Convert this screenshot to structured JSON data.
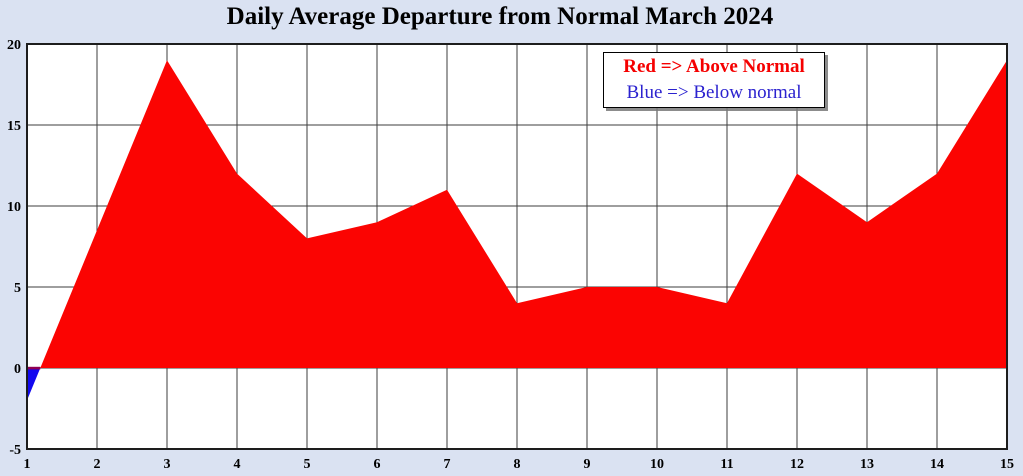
{
  "page": {
    "background": "#dae2f2"
  },
  "chart_data": {
    "type": "area",
    "title": "Daily Average Departure from Normal March 2024",
    "xlabel": "",
    "ylabel": "",
    "x": [
      1,
      2,
      3,
      4,
      5,
      6,
      7,
      8,
      9,
      10,
      11,
      12,
      13,
      14,
      15
    ],
    "values": [
      -2,
      8.5,
      19,
      12,
      8,
      9,
      11,
      4,
      5,
      5,
      4,
      12,
      9,
      12,
      19
    ],
    "baseline": 0,
    "xlim": [
      1,
      15
    ],
    "ylim": [
      -5,
      20
    ],
    "x_ticks": [
      1,
      2,
      3,
      4,
      5,
      6,
      7,
      8,
      9,
      10,
      11,
      12,
      13,
      14,
      15
    ],
    "y_ticks": [
      -5,
      0,
      5,
      10,
      15,
      20
    ],
    "grid": true,
    "legend": {
      "position": "top-right",
      "entries": [
        {
          "label": "Red => Above Normal",
          "color": "#f50000",
          "bold": true
        },
        {
          "label": "Blue => Below normal",
          "color": "#2b22cf",
          "bold": false
        }
      ]
    },
    "colors": {
      "above_normal": "#fb0402",
      "below_normal": "#1208ef",
      "plot_background": "#ffffff",
      "gridline": "#3e3e3e",
      "border": "#1d1d1d",
      "title": "#000000",
      "tick_label": "#000000",
      "zero_overlap_strip": "#8f0053"
    }
  }
}
